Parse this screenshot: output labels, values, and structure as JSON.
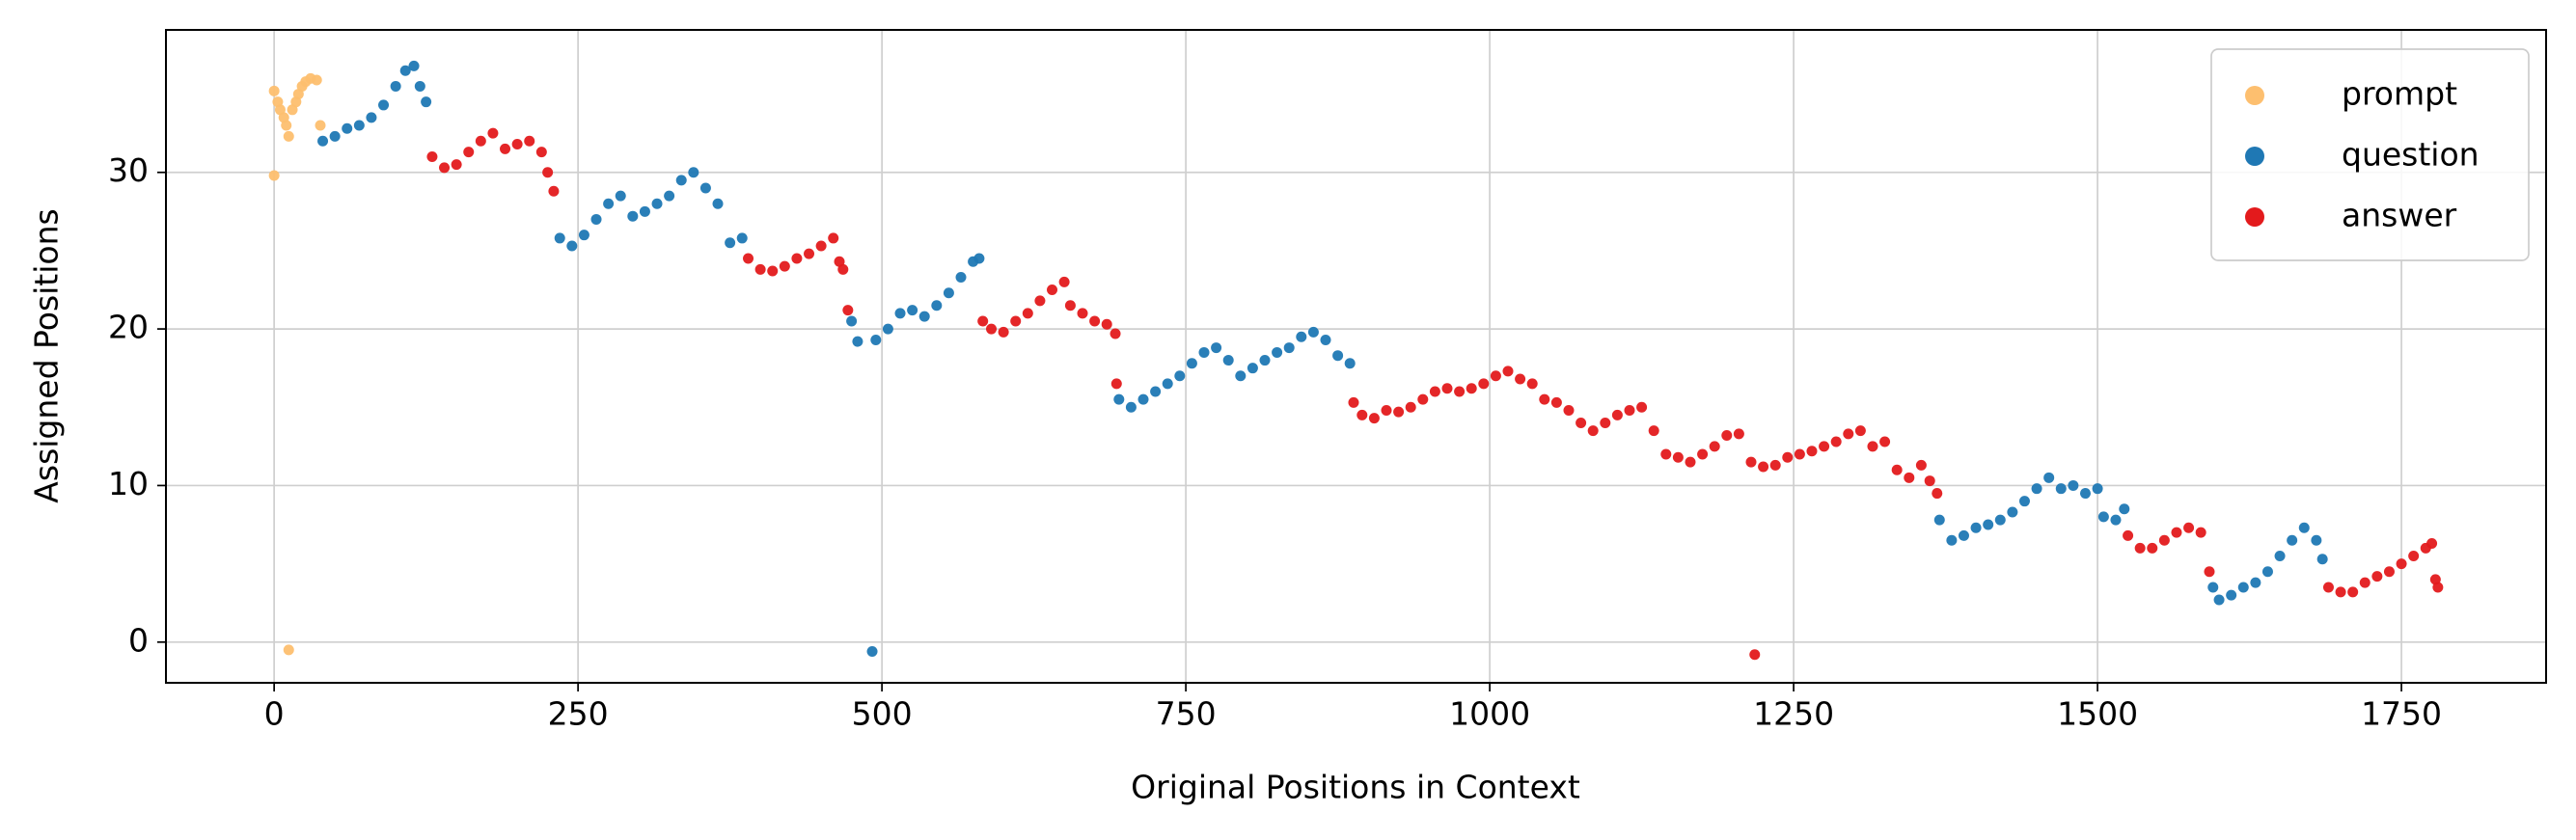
{
  "chart_data": {
    "type": "scatter",
    "x_label": "Original Positions in Context",
    "y_label": "Assigned Positions",
    "xlim": [
      -89,
      1869
    ],
    "ylim": [
      -2.6,
      39.1
    ],
    "xticks": [
      0,
      250,
      500,
      750,
      1000,
      1250,
      1500,
      1750
    ],
    "yticks": [
      0,
      10,
      20,
      30
    ],
    "grid": true,
    "legend": "upper right",
    "series": [
      {
        "name": "prompt",
        "color": "#fdbf6f",
        "x": [
          0,
          0,
          3,
          5,
          8,
          10,
          12,
          12,
          15,
          18,
          20,
          23,
          26,
          30,
          35,
          38
        ],
        "values": [
          29.8,
          35.2,
          34.5,
          34,
          33.5,
          33,
          32.3,
          -0.5,
          34,
          34.5,
          35,
          35.5,
          35.8,
          36,
          35.9,
          33
        ]
      },
      {
        "name": "question",
        "color": "#1f78b4",
        "x": [
          40,
          50,
          60,
          70,
          80,
          90,
          100,
          108,
          115,
          120,
          125,
          235,
          245,
          255,
          265,
          275,
          285,
          295,
          305,
          315,
          325,
          335,
          345,
          355,
          365,
          375,
          385,
          475,
          480,
          492,
          495,
          505,
          515,
          525,
          535,
          545,
          555,
          565,
          575,
          580,
          695,
          705,
          715,
          725,
          735,
          745,
          755,
          765,
          775,
          785,
          795,
          805,
          815,
          825,
          835,
          845,
          855,
          865,
          875,
          885,
          1370,
          1380,
          1390,
          1400,
          1410,
          1420,
          1430,
          1440,
          1450,
          1460,
          1470,
          1480,
          1490,
          1500,
          1505,
          1515,
          1522,
          1595,
          1600,
          1610,
          1620,
          1630,
          1640,
          1650,
          1660,
          1670,
          1680,
          1685
        ],
        "values": [
          32,
          32.3,
          32.8,
          33,
          33.5,
          34.3,
          35.5,
          36.5,
          36.8,
          35.5,
          34.5,
          25.8,
          25.3,
          26,
          27,
          28,
          28.5,
          27.2,
          27.5,
          28,
          28.5,
          29.5,
          30,
          29,
          28,
          25.5,
          25.8,
          20.5,
          19.2,
          -0.6,
          19.3,
          20,
          21,
          21.2,
          20.8,
          21.5,
          22.3,
          23.3,
          24.3,
          24.5,
          15.5,
          15,
          15.5,
          16,
          16.5,
          17,
          17.8,
          18.5,
          18.8,
          18,
          17,
          17.5,
          18,
          18.5,
          18.8,
          19.5,
          19.8,
          19.3,
          18.3,
          17.8,
          7.8,
          6.5,
          6.8,
          7.3,
          7.5,
          7.8,
          8.3,
          9,
          9.8,
          10.5,
          9.8,
          10,
          9.5,
          9.8,
          8,
          7.8,
          8.5,
          3.5,
          2.7,
          3,
          3.5,
          3.8,
          4.5,
          5.5,
          6.5,
          7.3,
          6.5,
          5.3
        ]
      },
      {
        "name": "answer",
        "color": "#e31a1c",
        "x": [
          130,
          140,
          150,
          160,
          170,
          180,
          190,
          200,
          210,
          220,
          225,
          230,
          390,
          400,
          410,
          420,
          430,
          440,
          450,
          460,
          465,
          468,
          472,
          583,
          590,
          600,
          610,
          620,
          630,
          640,
          650,
          655,
          665,
          675,
          685,
          692,
          693,
          888,
          895,
          905,
          915,
          925,
          935,
          945,
          955,
          965,
          975,
          985,
          995,
          1005,
          1015,
          1025,
          1035,
          1045,
          1055,
          1065,
          1075,
          1085,
          1095,
          1105,
          1115,
          1125,
          1135,
          1145,
          1155,
          1165,
          1175,
          1185,
          1195,
          1205,
          1215,
          1218,
          1225,
          1235,
          1245,
          1255,
          1265,
          1275,
          1285,
          1295,
          1305,
          1315,
          1325,
          1335,
          1345,
          1355,
          1362,
          1368,
          1525,
          1535,
          1545,
          1555,
          1565,
          1575,
          1585,
          1592,
          1690,
          1700,
          1710,
          1720,
          1730,
          1740,
          1750,
          1760,
          1770,
          1775,
          1778,
          1780
        ],
        "values": [
          31,
          30.3,
          30.5,
          31.3,
          32,
          32.5,
          31.5,
          31.8,
          32,
          31.3,
          30,
          28.8,
          24.5,
          23.8,
          23.7,
          24,
          24.5,
          24.8,
          25.3,
          25.8,
          24.3,
          23.8,
          21.2,
          20.5,
          20,
          19.8,
          20.5,
          21,
          21.8,
          22.5,
          23,
          21.5,
          21,
          20.5,
          20.3,
          19.7,
          16.5,
          15.3,
          14.5,
          14.3,
          14.8,
          14.7,
          15,
          15.5,
          16,
          16.2,
          16,
          16.2,
          16.5,
          17,
          17.3,
          16.8,
          16.5,
          15.5,
          15.3,
          14.8,
          14,
          13.5,
          14,
          14.5,
          14.8,
          15,
          13.5,
          12,
          11.8,
          11.5,
          12,
          12.5,
          13.2,
          13.3,
          11.5,
          -0.8,
          11.2,
          11.3,
          11.8,
          12,
          12.2,
          12.5,
          12.8,
          13.3,
          13.5,
          12.5,
          12.8,
          11,
          10.5,
          11.3,
          10.3,
          9.5,
          6.8,
          6,
          6,
          6.5,
          7,
          7.3,
          7,
          4.5,
          3.5,
          3.2,
          3.2,
          3.8,
          4.2,
          4.5,
          5,
          5.5,
          6,
          6.3,
          4,
          3.5
        ]
      }
    ]
  }
}
